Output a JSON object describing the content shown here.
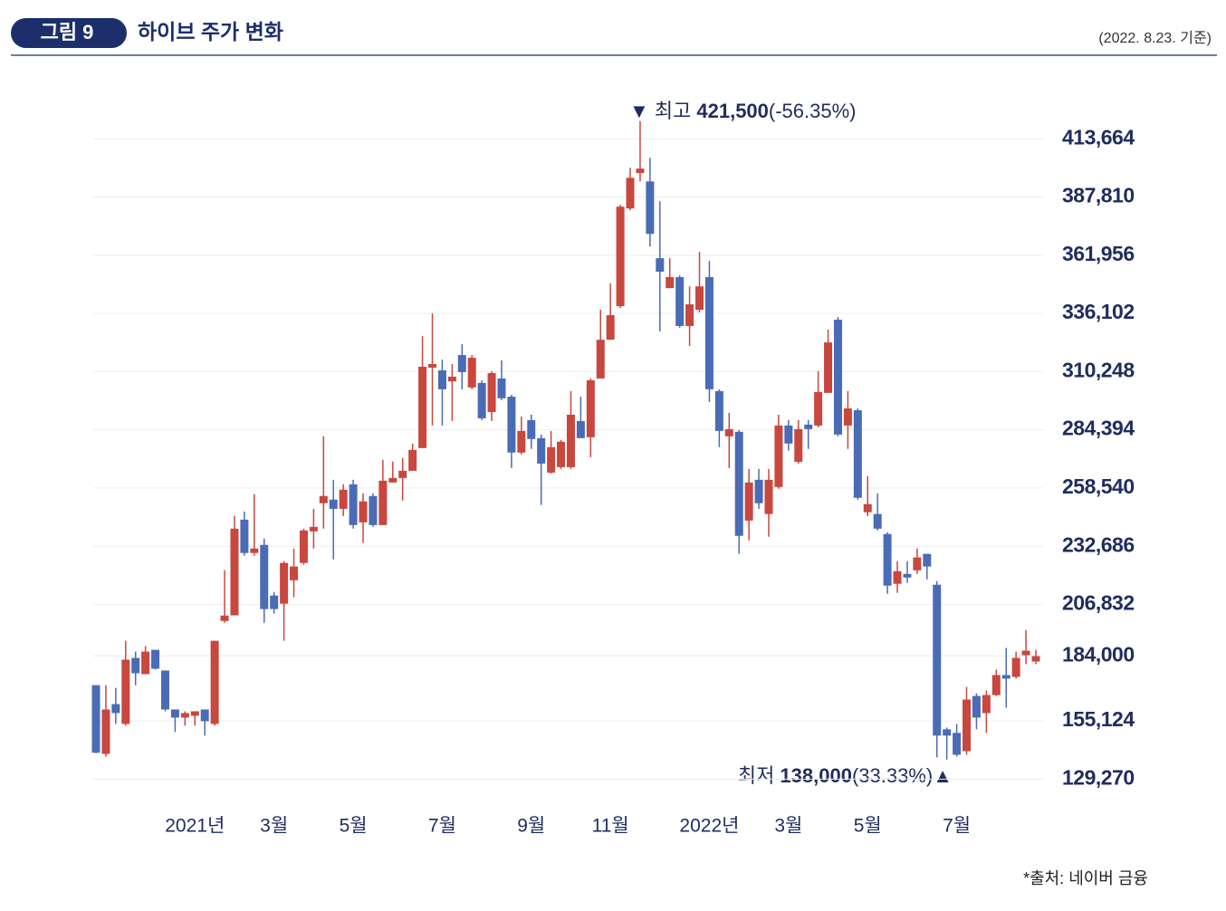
{
  "header": {
    "figure_label": "그림 9",
    "title": "하이브 주가 변화",
    "note": "(2022. 8.23. 기준)"
  },
  "source": "*출처: 네이버 금융",
  "chart_data": {
    "type": "candlestick",
    "up_color": "#c8473f",
    "down_color": "#4a6cb5",
    "categories": [
      null,
      null,
      null,
      null,
      null,
      null,
      null,
      null,
      null,
      null,
      "2021년",
      null,
      null,
      null,
      null,
      null,
      null,
      null,
      "3월",
      null,
      null,
      null,
      null,
      null,
      null,
      null,
      "5월",
      null,
      null,
      null,
      null,
      null,
      null,
      null,
      null,
      "7월",
      null,
      null,
      null,
      null,
      null,
      null,
      null,
      null,
      "9월",
      null,
      null,
      null,
      null,
      null,
      null,
      null,
      "11월",
      null,
      null,
      null,
      null,
      null,
      null,
      null,
      null,
      null,
      "2022년",
      null,
      null,
      null,
      null,
      null,
      null,
      null,
      "3월",
      null,
      null,
      null,
      null,
      null,
      null,
      null,
      "5월",
      null,
      null,
      null,
      null,
      null,
      null,
      null,
      null,
      "7월",
      null,
      null,
      null,
      null,
      null,
      null,
      null,
      null
    ],
    "open": [
      171000,
      140500,
      162600,
      153800,
      183100,
      175900,
      186700,
      177500,
      160200,
      156600,
      157400,
      160200,
      153800,
      199500,
      202000,
      244500,
      229700,
      233300,
      210800,
      207200,
      217600,
      225300,
      239300,
      251800,
      253400,
      249300,
      260200,
      243300,
      255000,
      242100,
      261000,
      263000,
      266200,
      276300,
      312000,
      310800,
      305900,
      317600,
      303200,
      305200,
      292300,
      307200,
      299100,
      274300,
      288700,
      280700,
      265400,
      267800,
      267800,
      288300,
      281100,
      307200,
      324400,
      339300,
      382700,
      398400,
      394700,
      360600,
      347300,
      352200,
      330500,
      337700,
      352200,
      301600,
      281500,
      283500,
      244100,
      262200,
      247000,
      259000,
      286300,
      270200,
      286700,
      286300,
      300800,
      333300,
      286300,
      293100,
      247800,
      247000,
      238100,
      216000,
      220400,
      222000,
      229300,
      215600,
      151400,
      149800,
      141700,
      166200,
      158600,
      166600,
      175500,
      174700,
      184300,
      181500
    ],
    "high": [
      171000,
      171000,
      169800,
      190700,
      185900,
      188300,
      186700,
      177500,
      160200,
      159400,
      159400,
      160200,
      190700,
      222100,
      246100,
      248100,
      255800,
      236100,
      212400,
      226100,
      231700,
      240500,
      249300,
      281500,
      262200,
      260200,
      262200,
      256200,
      256200,
      271100,
      270300,
      271900,
      278300,
      326000,
      336100,
      315600,
      313600,
      322400,
      317600,
      306400,
      310400,
      315200,
      299900,
      290300,
      291100,
      282300,
      283900,
      279900,
      301600,
      299100,
      307200,
      337700,
      349400,
      384300,
      400800,
      421500,
      405200,
      385900,
      360600,
      353000,
      348100,
      363400,
      359400,
      302400,
      291900,
      284300,
      267000,
      267000,
      267000,
      291100,
      288700,
      288700,
      288700,
      310400,
      328900,
      334500,
      301600,
      293900,
      263800,
      256200,
      238900,
      226100,
      226100,
      231700,
      229300,
      217200,
      152200,
      153800,
      170200,
      167400,
      168600,
      177900,
      187500,
      185900,
      195500,
      186700
    ],
    "low": [
      140800,
      139300,
      153800,
      153000,
      171000,
      175900,
      177900,
      159400,
      150200,
      153000,
      153000,
      148600,
      153000,
      198700,
      202000,
      228500,
      228500,
      198700,
      202800,
      190700,
      210000,
      224500,
      231700,
      240500,
      226900,
      246100,
      240500,
      234100,
      241300,
      242100,
      261000,
      253000,
      266200,
      276300,
      286300,
      286300,
      288300,
      302400,
      302400,
      288700,
      288300,
      297600,
      267400,
      273500,
      275900,
      251000,
      265000,
      267000,
      267000,
      280700,
      272200,
      307200,
      324400,
      338500,
      381900,
      394700,
      365800,
      328100,
      347300,
      329700,
      321600,
      336500,
      296700,
      276700,
      267400,
      229300,
      235300,
      249300,
      236900,
      258200,
      275100,
      269400,
      275900,
      285500,
      300800,
      281500,
      275900,
      253400,
      246100,
      239700,
      211600,
      212000,
      216400,
      220400,
      218000,
      138900,
      138000,
      139300,
      140100,
      151400,
      149800,
      166200,
      161000,
      173900,
      180300,
      180300
    ],
    "close": [
      141000,
      160200,
      158600,
      182300,
      176300,
      185900,
      178300,
      160200,
      156600,
      158600,
      159400,
      155000,
      190700,
      201900,
      240500,
      229700,
      231700,
      204800,
      204800,
      225300,
      223700,
      239700,
      241300,
      255000,
      249300,
      257800,
      242100,
      252600,
      242100,
      261800,
      263000,
      266200,
      275500,
      312400,
      313600,
      302400,
      308000,
      310000,
      316400,
      289500,
      309600,
      298400,
      274300,
      283900,
      280300,
      269400,
      276700,
      279100,
      291100,
      280700,
      306400,
      324400,
      335300,
      383500,
      396300,
      400400,
      371400,
      354600,
      352200,
      330500,
      340100,
      348100,
      302400,
      283900,
      284700,
      237300,
      261000,
      251800,
      262200,
      286300,
      278300,
      284700,
      284700,
      301200,
      323200,
      282300,
      293900,
      254200,
      251400,
      240500,
      215200,
      221600,
      218800,
      227700,
      223700,
      148600,
      148600,
      140100,
      164600,
      156600,
      166600,
      175500,
      173900,
      183100,
      186300,
      183900
    ],
    "ylim": [
      125000,
      425000
    ],
    "yticks": [
      {
        "value": 129270,
        "label": "129,270"
      },
      {
        "value": 155124,
        "label": "155,124"
      },
      {
        "value": 184000,
        "label": "184,000"
      },
      {
        "value": 206832,
        "label": "206,832"
      },
      {
        "value": 232686,
        "label": "232,686"
      },
      {
        "value": 258540,
        "label": "258,540"
      },
      {
        "value": 284394,
        "label": "284,394"
      },
      {
        "value": 310248,
        "label": "310,248"
      },
      {
        "value": 336102,
        "label": "336,102"
      },
      {
        "value": 361956,
        "label": "361,956"
      },
      {
        "value": 387810,
        "label": "387,810"
      },
      {
        "value": 413664,
        "label": "413,664"
      }
    ],
    "grid": true,
    "annotations": [
      {
        "label": "최고",
        "value": "421,500",
        "change": "(-56.35%)"
      },
      {
        "label": "최저",
        "value": "138,000",
        "change": "(33.33%)"
      }
    ]
  }
}
